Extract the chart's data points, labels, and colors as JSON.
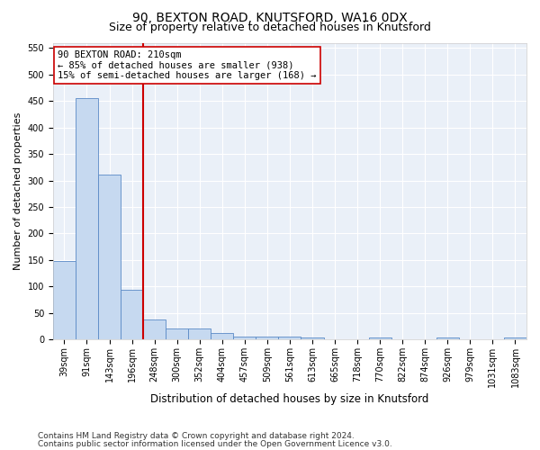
{
  "title1": "90, BEXTON ROAD, KNUTSFORD, WA16 0DX",
  "title2": "Size of property relative to detached houses in Knutsford",
  "xlabel": "Distribution of detached houses by size in Knutsford",
  "ylabel": "Number of detached properties",
  "categories": [
    "39sqm",
    "91sqm",
    "143sqm",
    "196sqm",
    "248sqm",
    "300sqm",
    "352sqm",
    "404sqm",
    "457sqm",
    "509sqm",
    "561sqm",
    "613sqm",
    "665sqm",
    "718sqm",
    "770sqm",
    "822sqm",
    "874sqm",
    "926sqm",
    "979sqm",
    "1031sqm",
    "1083sqm"
  ],
  "values": [
    148,
    456,
    311,
    93,
    37,
    20,
    20,
    12,
    6,
    6,
    5,
    4,
    0,
    0,
    4,
    0,
    0,
    4,
    0,
    0,
    3
  ],
  "bar_color": "#c6d9f0",
  "bar_edge_color": "#5a8ac6",
  "vline_x": 3.5,
  "vline_color": "#cc0000",
  "annotation_box_text": "90 BEXTON ROAD: 210sqm\n← 85% of detached houses are smaller (938)\n15% of semi-detached houses are larger (168) →",
  "box_edge_color": "#cc0000",
  "ylim": [
    0,
    560
  ],
  "yticks": [
    0,
    50,
    100,
    150,
    200,
    250,
    300,
    350,
    400,
    450,
    500,
    550
  ],
  "footer1": "Contains HM Land Registry data © Crown copyright and database right 2024.",
  "footer2": "Contains public sector information licensed under the Open Government Licence v3.0.",
  "plot_bg_color": "#eaf0f8",
  "title1_fontsize": 10,
  "title2_fontsize": 9,
  "tick_fontsize": 7,
  "ylabel_fontsize": 8,
  "xlabel_fontsize": 8.5,
  "footer_fontsize": 6.5,
  "ann_fontsize": 7.5
}
